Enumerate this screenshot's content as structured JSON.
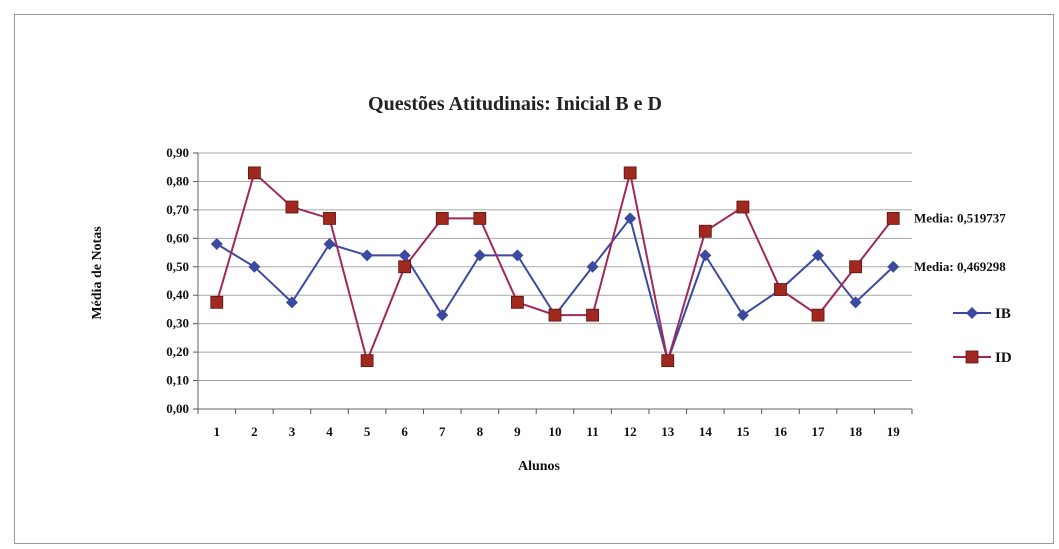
{
  "chart_data": {
    "type": "line",
    "title": "Questões Atitudinais:  Inicial B e D",
    "xlabel": "Alunos",
    "ylabel": "Média de Notas",
    "x": [
      "1",
      "2",
      "3",
      "4",
      "5",
      "6",
      "7",
      "8",
      "9",
      "10",
      "11",
      "12",
      "13",
      "14",
      "15",
      "16",
      "17",
      "18",
      "19"
    ],
    "ylim": [
      0,
      0.9
    ],
    "yticks": [
      "0,00",
      "0,10",
      "0,20",
      "0,30",
      "0,40",
      "0,50",
      "0,60",
      "0,70",
      "0,80",
      "0,90"
    ],
    "grid": true,
    "legend_position": "right",
    "series": [
      {
        "name": "IB",
        "color": "#3b4aa0",
        "marker": "diamond",
        "values": [
          0.58,
          0.5,
          0.375,
          0.58,
          0.54,
          0.54,
          0.33,
          0.54,
          0.54,
          0.33,
          0.5,
          0.67,
          0.17,
          0.54,
          0.33,
          0.42,
          0.54,
          0.375,
          0.5
        ]
      },
      {
        "name": "ID",
        "color": "#a0285a",
        "marker_color": "#a0281e",
        "marker": "square",
        "values": [
          0.375,
          0.83,
          0.71,
          0.67,
          0.17,
          0.5,
          0.67,
          0.67,
          0.375,
          0.33,
          0.33,
          0.83,
          0.17,
          0.625,
          0.71,
          0.42,
          0.33,
          0.5,
          0.67
        ]
      }
    ],
    "annotations": [
      {
        "text": "Media: 0,519737",
        "attach_series": "ID"
      },
      {
        "text": "Media: 0,469298",
        "attach_series": "IB"
      }
    ]
  }
}
